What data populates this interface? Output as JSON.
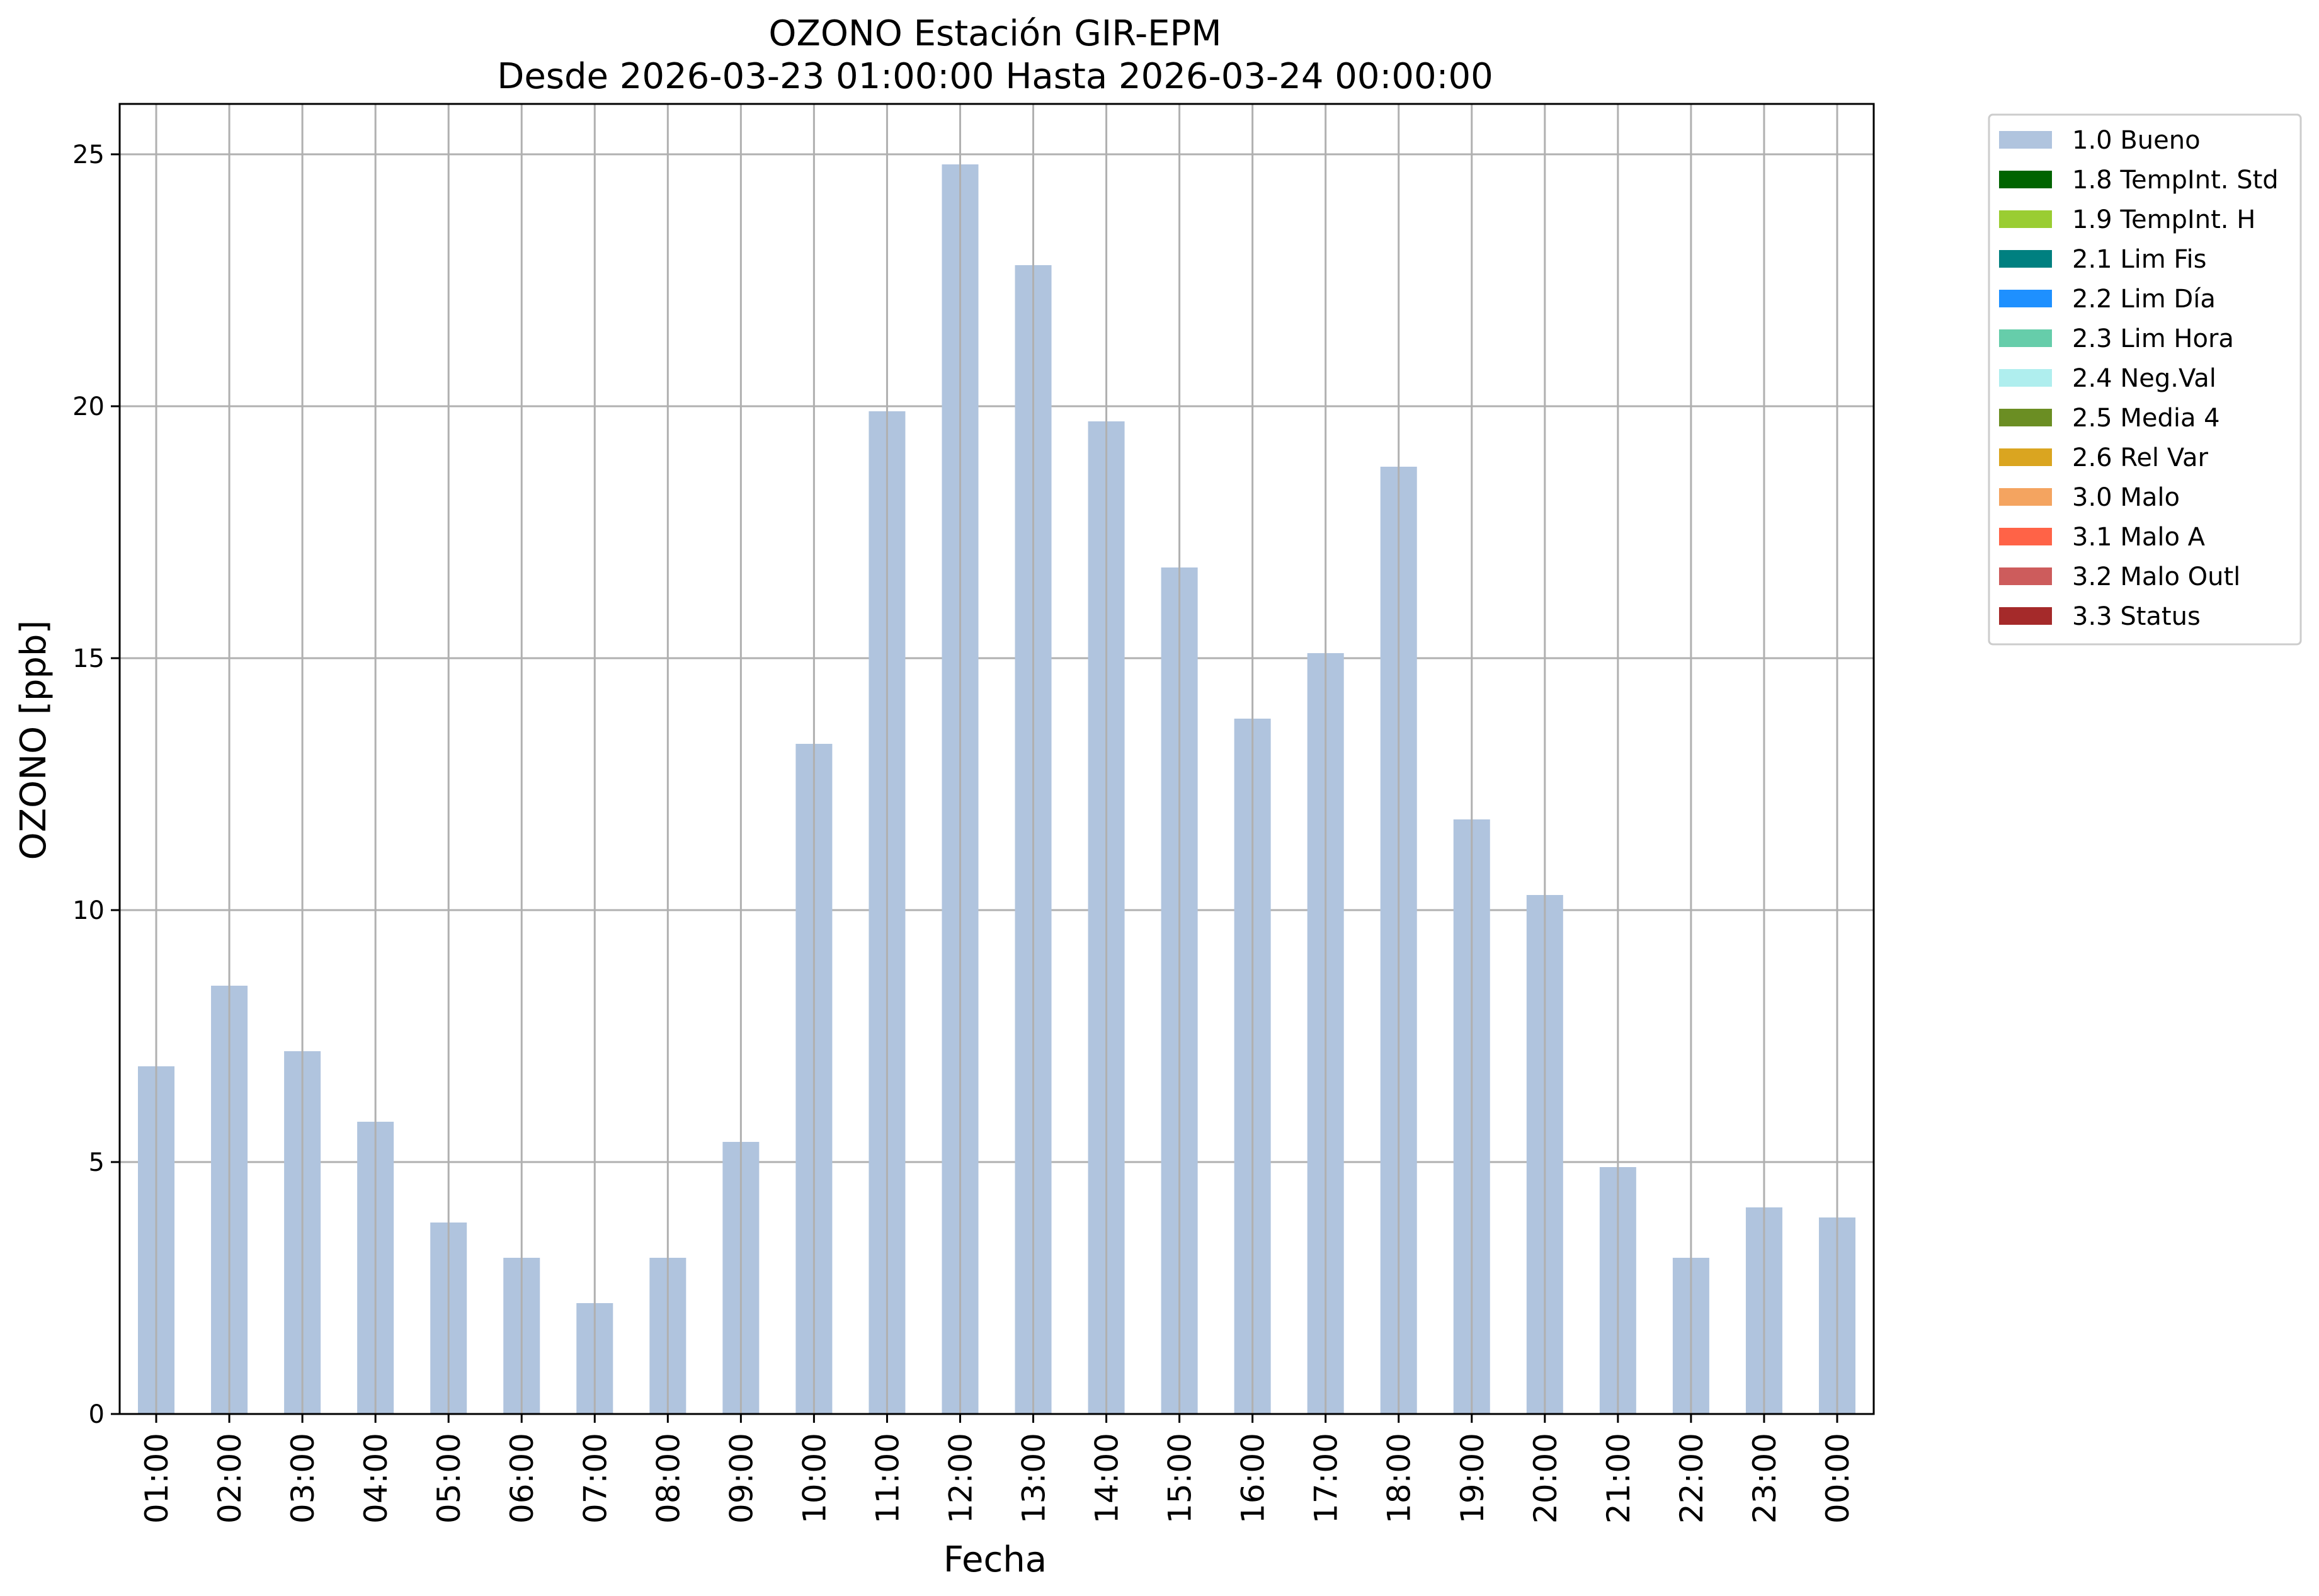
{
  "chart_data": {
    "type": "bar",
    "title": "OZONO Estación GIR-EPM",
    "subtitle": "Desde 2026-03-23 01:00:00 Hasta 2026-03-24 00:00:00",
    "xlabel": "Fecha",
    "ylabel": "OZONO [ppb]",
    "ylim": [
      0,
      26
    ],
    "yticks": [
      0,
      5,
      10,
      15,
      20,
      25
    ],
    "grid": true,
    "legend_position": "outside-top-right",
    "categories": [
      "01:00",
      "02:00",
      "03:00",
      "04:00",
      "05:00",
      "06:00",
      "07:00",
      "08:00",
      "09:00",
      "10:00",
      "11:00",
      "12:00",
      "13:00",
      "14:00",
      "15:00",
      "16:00",
      "17:00",
      "18:00",
      "19:00",
      "20:00",
      "21:00",
      "22:00",
      "23:00",
      "00:00"
    ],
    "series": [
      {
        "name": "1.0 Bueno",
        "color": "#b0c4de",
        "values": [
          6.9,
          8.5,
          7.2,
          5.8,
          3.8,
          3.1,
          2.2,
          3.1,
          5.4,
          13.3,
          19.9,
          24.8,
          22.8,
          19.7,
          16.8,
          13.8,
          15.1,
          18.8,
          11.8,
          10.3,
          4.9,
          3.1,
          4.1,
          3.9
        ]
      }
    ],
    "legend": [
      {
        "label": "1.0 Bueno",
        "color": "#b0c4de"
      },
      {
        "label": "1.8 TempInt. Std",
        "color": "#006400"
      },
      {
        "label": "1.9 TempInt. H",
        "color": "#9acd32"
      },
      {
        "label": "2.1 Lim Fis",
        "color": "#008080"
      },
      {
        "label": "2.2 Lim Día",
        "color": "#1e90ff"
      },
      {
        "label": "2.3 Lim Hora",
        "color": "#66cdaa"
      },
      {
        "label": "2.4 Neg.Val",
        "color": "#afeeee"
      },
      {
        "label": "2.5 Media 4",
        "color": "#6b8e23"
      },
      {
        "label": "2.6 Rel Var",
        "color": "#daa520"
      },
      {
        "label": "3.0 Malo",
        "color": "#f4a460"
      },
      {
        "label": "3.1 Malo A",
        "color": "#ff6347"
      },
      {
        "label": "3.2 Malo Outl",
        "color": "#cd5c5c"
      },
      {
        "label": "3.3 Status",
        "color": "#a52a2a"
      }
    ]
  }
}
